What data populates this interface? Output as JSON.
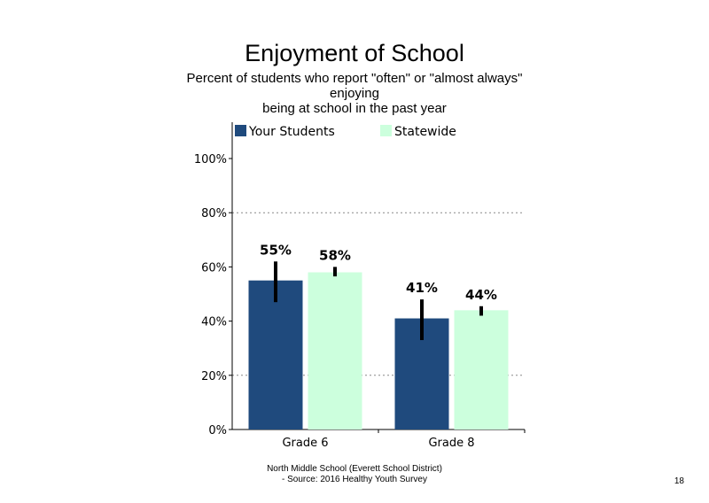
{
  "chart_data": {
    "type": "bar",
    "title": "Enjoyment of School",
    "subtitle": "Percent of students  who report \"often\" or \"almost always\"\nenjoying\nbeing at school in the past year",
    "categories": [
      "Grade 6",
      "Grade 8"
    ],
    "series": [
      {
        "name": "Your Students",
        "color": "#1f4a7d",
        "values": [
          55,
          41
        ],
        "labels": [
          "55%",
          "41%"
        ],
        "error_low": [
          47,
          33
        ],
        "error_high": [
          62,
          48
        ]
      },
      {
        "name": "Statewide",
        "color": "#ccffdd",
        "values": [
          58,
          44
        ],
        "labels": [
          "58%",
          "44%"
        ],
        "error_low": [
          56.5,
          42
        ],
        "error_high": [
          60,
          45.5
        ]
      }
    ],
    "ylim": [
      0,
      100
    ],
    "yticks": [
      {
        "value": 0,
        "label": "0%"
      },
      {
        "value": 20,
        "label": "20%"
      },
      {
        "value": 40,
        "label": "40%"
      },
      {
        "value": 60,
        "label": "60%"
      },
      {
        "value": 80,
        "label": "80%"
      },
      {
        "value": 100,
        "label": "100%"
      }
    ],
    "gridlines": [
      20,
      80
    ],
    "legend_placement": "top"
  },
  "footer": {
    "line1": "North Middle School (Everett School District)",
    "line2": "- Source: 2016 Healthy  Youth Survey"
  },
  "page_number": "18"
}
